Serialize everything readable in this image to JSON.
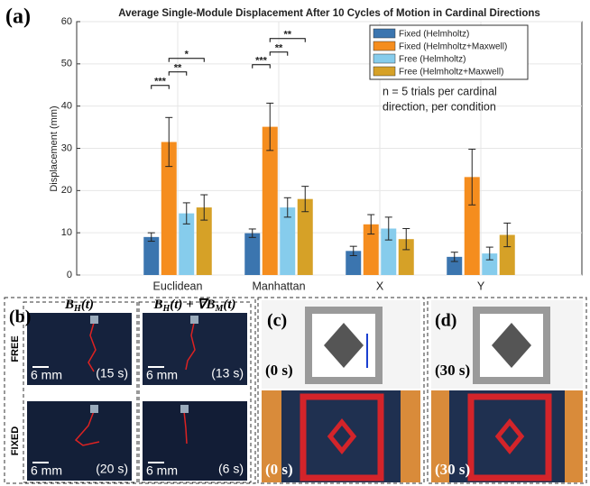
{
  "figure_label": "(a)",
  "chart_data": {
    "type": "bar",
    "title": "Average Single-Module Displacement After 10 Cycles of Motion in Cardinal Directions",
    "y_label": "Displacement (mm)",
    "categories": [
      "Euclidean",
      "Manhattan",
      "X",
      "Y"
    ],
    "series": [
      {
        "name": "Fixed (Helmholtz)",
        "color": "#3b75af",
        "values": [
          9.0,
          9.9,
          5.7,
          4.3
        ],
        "errors": [
          1.0,
          1.0,
          1.1,
          1.1
        ]
      },
      {
        "name": "Fixed (Helmholtz+Maxwell)",
        "color": "#f58d1e",
        "values": [
          31.5,
          35.1,
          12.0,
          23.2
        ],
        "errors": [
          5.8,
          5.6,
          2.3,
          6.6
        ]
      },
      {
        "name": "Free (Helmholtz)",
        "color": "#86ccec",
        "values": [
          14.6,
          16.0,
          11.0,
          5.1
        ],
        "errors": [
          2.5,
          2.3,
          2.7,
          1.5
        ]
      },
      {
        "name": "Free (Helmholtz+Maxwell)",
        "color": "#d6a127",
        "values": [
          16.0,
          18.0,
          8.5,
          9.5
        ],
        "errors": [
          3.0,
          3.0,
          2.5,
          2.8
        ]
      }
    ],
    "ylim": [
      0,
      60
    ],
    "yticks": [
      0,
      10,
      20,
      30,
      40,
      50,
      60
    ],
    "grid": true,
    "legend": "upper right",
    "note": [
      "n = 5 trials per cardinal",
      "direction, per condition"
    ],
    "annotations": [
      {
        "text": "***",
        "category": 0,
        "from": 0,
        "to": 1,
        "y": 44.9
      },
      {
        "text": "**",
        "category": 0,
        "from": 1,
        "to": 2,
        "y": 48.1
      },
      {
        "text": "*",
        "category": 0,
        "from": 1,
        "to": 3,
        "y": 51.3
      },
      {
        "text": "***",
        "category": 1,
        "from": 0,
        "to": 1,
        "y": 49.8
      },
      {
        "text": "**",
        "category": 1,
        "from": 1,
        "to": 2,
        "y": 52.8
      },
      {
        "text": "**",
        "category": 1,
        "from": 1,
        "to": 3,
        "y": 56.0
      }
    ]
  },
  "panel_b": {
    "label": "(b)",
    "headers": [
      [
        {
          "t": "B"
        },
        {
          "sub": "H"
        },
        {
          "t": "(t)"
        }
      ],
      [
        {
          "t": "B"
        },
        {
          "sub": "H"
        },
        {
          "t": "(t) + ∇B"
        },
        {
          "sub": "M"
        },
        {
          "t": "(t)"
        }
      ]
    ],
    "rows": [
      "FREE",
      "FIXED"
    ],
    "scale": "6 mm",
    "times": [
      [
        "(15 s)",
        "(13 s)"
      ],
      [
        "(20 s)",
        "(6 s)"
      ]
    ]
  },
  "panel_c": {
    "label": "(c)",
    "times": [
      "(0 s)",
      "(0 s)"
    ]
  },
  "panel_d": {
    "label": "(d)",
    "times": [
      "(30 s)",
      "(30 s)"
    ]
  }
}
